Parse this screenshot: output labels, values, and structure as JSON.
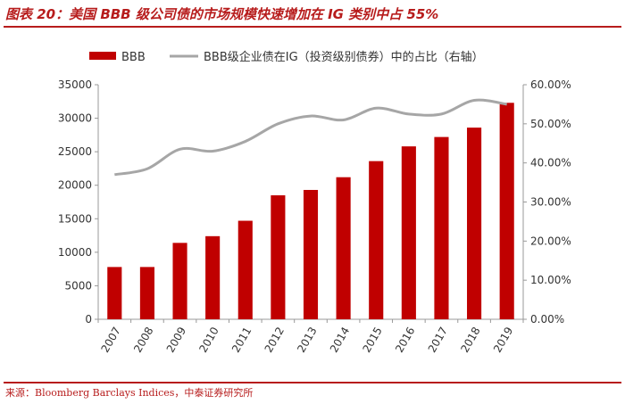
{
  "title": "图表 20：美国 BBB 级公司债的市场规模快速增加在 IG 类别中占 55%",
  "source": "来源：Bloomberg Barclays Indices，中泰证券研究所",
  "colors": {
    "bar": "#c00000",
    "line": "#a6a6a6",
    "accent": "#b71c1c"
  },
  "chart_data": {
    "type": "bar",
    "categories": [
      "2007",
      "2008",
      "2009",
      "2010",
      "2011",
      "2012",
      "2013",
      "2014",
      "2015",
      "2016",
      "2017",
      "2018",
      "2019"
    ],
    "series": [
      {
        "name": "BBB",
        "type": "bar",
        "axis": "left",
        "values": [
          7800,
          7800,
          11400,
          12400,
          14700,
          18500,
          19300,
          21200,
          23600,
          25800,
          27200,
          28600,
          32300
        ]
      },
      {
        "name": "BBB级企业债在IG（投资级别债券）中的占比（右轴）",
        "type": "line",
        "axis": "right",
        "values": [
          37.0,
          38.5,
          43.5,
          43.0,
          45.5,
          50.0,
          52.0,
          51.0,
          54.0,
          52.5,
          52.5,
          56.0,
          55.0
        ]
      }
    ],
    "ylim": [
      0,
      35000
    ],
    "yticks": [
      "0",
      "5000",
      "10000",
      "15000",
      "20000",
      "25000",
      "30000",
      "35000"
    ],
    "y2lim": [
      0,
      60
    ],
    "y2ticks": [
      "0.00%",
      "10.00%",
      "20.00%",
      "30.00%",
      "40.00%",
      "50.00%",
      "60.00%"
    ],
    "legend_position": "top",
    "grid": false
  }
}
